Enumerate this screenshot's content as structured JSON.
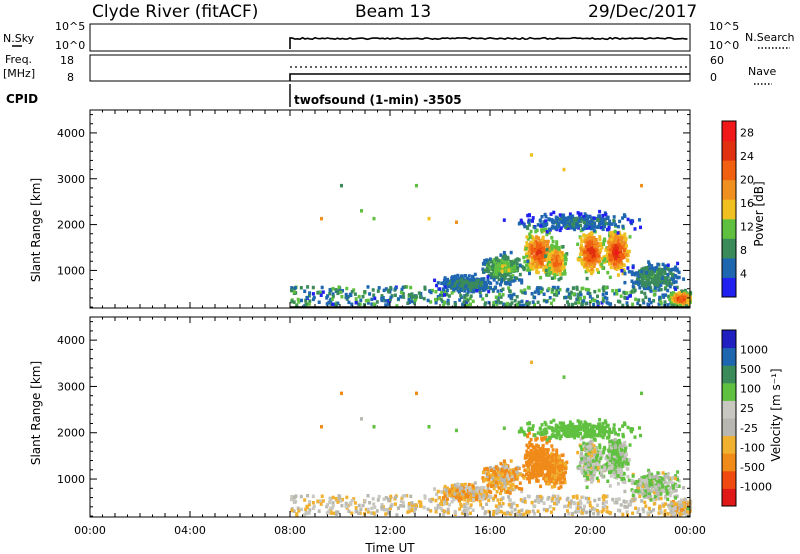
{
  "header": {
    "station": "Clyde River (fitACF)",
    "beam": "Beam 13",
    "date": "29/Dec/2017",
    "cpid_label": "CPID",
    "cpid_value": "twofsound (1-min) -3505"
  },
  "panels": {
    "nsky": {
      "left_label": "N.Sky",
      "left_top": "10^5",
      "left_bottom": "10^0",
      "right_top": "10^5",
      "right_bottom": "10^0",
      "right_label": "N.Search"
    },
    "freq": {
      "left_label_1": "Freq.",
      "left_label_2": "[MHz]",
      "left_top": "18",
      "left_bottom": "8",
      "right_top": "60",
      "right_bottom": "0",
      "right_label": "Nave"
    }
  },
  "colors": {
    "power": [
      "#2020f0",
      "#1f66b0",
      "#3a8a5a",
      "#5fc03f",
      "#f0c020",
      "#f09020",
      "#f06010",
      "#e03010",
      "#f01818"
    ],
    "velocity": [
      "#e01818",
      "#f04a10",
      "#f08a18",
      "#f0b030",
      "#b8b8b0",
      "#c8c8c0",
      "#60c040",
      "#3a8a5a",
      "#1f66b0",
      "#2020c0"
    ],
    "axis": "#000000"
  },
  "chart_data": [
    {
      "type": "heatmap",
      "title": "",
      "ylabel": "Slant Range [km]",
      "xlabel": "",
      "ylim": [
        180,
        4500
      ],
      "xlim": [
        "00:00",
        "24:00"
      ],
      "yticks": [
        "1000",
        "2000",
        "3000",
        "4000"
      ],
      "colorbar": {
        "label": "Power [dB]",
        "ticks": [
          "4",
          "8",
          "12",
          "16",
          "20",
          "24",
          "28"
        ],
        "range": [
          0,
          30
        ]
      },
      "data_start_time": "08:00"
    },
    {
      "type": "heatmap",
      "title": "",
      "ylabel": "Slant Range [km]",
      "xlabel": "Time UT",
      "ylim": [
        180,
        4500
      ],
      "xlim": [
        "00:00",
        "24:00"
      ],
      "xticks": [
        "00:00",
        "04:00",
        "08:00",
        "12:00",
        "16:00",
        "20:00",
        "00:00"
      ],
      "yticks": [
        "1000",
        "2000",
        "3000",
        "4000"
      ],
      "colorbar": {
        "label": "Velocity [m s⁻¹]",
        "ticks": [
          "1000",
          "500",
          "100",
          "25",
          "-25",
          "-100",
          "-500",
          "-1000"
        ],
        "range": [
          -1000,
          1000
        ]
      },
      "data_start_time": "08:00"
    }
  ]
}
